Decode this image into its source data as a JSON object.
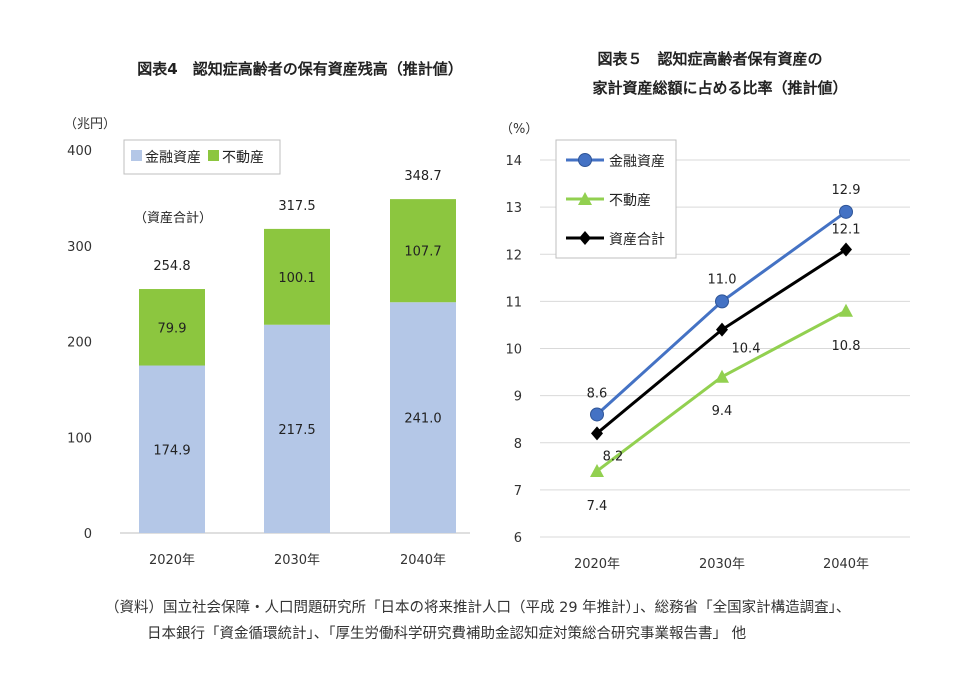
{
  "chart_data": [
    {
      "type": "bar",
      "stacked": true,
      "title": "図表4　認知症高齢者の保有資産残高（推計値）",
      "unit_label": "（兆円）",
      "total_label": "（資産合計）",
      "categories": [
        "2020年",
        "2030年",
        "2040年"
      ],
      "series": [
        {
          "name": "金融資産",
          "color": "#b4c7e7",
          "values": [
            174.9,
            217.5,
            241.0
          ]
        },
        {
          "name": "不動産",
          "color": "#8cc63f",
          "values": [
            79.9,
            100.1,
            107.7
          ]
        }
      ],
      "totals": [
        254.8,
        317.5,
        348.7
      ],
      "ylim": [
        0,
        400
      ],
      "yticks": [
        0,
        100,
        200,
        300,
        400
      ],
      "legend": "top-left",
      "grid": false
    },
    {
      "type": "line",
      "title_lines": [
        "図表５　認知症高齢者保有資産の",
        "家計資産総額に占める比率（推計値）"
      ],
      "unit_label": "（%）",
      "categories": [
        "2020年",
        "2030年",
        "2040年"
      ],
      "series": [
        {
          "name": "金融資産",
          "color": "#4472c4",
          "marker": "circle",
          "values": [
            8.6,
            11.0,
            12.9
          ]
        },
        {
          "name": "不動産",
          "color": "#92d050",
          "marker": "triangle",
          "values": [
            7.4,
            9.4,
            10.8
          ]
        },
        {
          "name": "資産合計",
          "color": "#000000",
          "marker": "diamond",
          "values": [
            8.2,
            10.4,
            12.1
          ]
        }
      ],
      "ylim": [
        6,
        14
      ],
      "yticks": [
        6,
        7,
        8,
        9,
        10,
        11,
        12,
        13,
        14
      ],
      "legend": "top-left",
      "grid": true
    }
  ],
  "source": {
    "line1": "（資料）国立社会保障・人口問題研究所「日本の将来推計人口（平成 29 年推計）」、総務省「全国家計構造調査」、",
    "line2": "日本銀行「資金循環統計」、「厚生労働科学研究費補助金認知症対策総合研究事業報告書」 他"
  }
}
